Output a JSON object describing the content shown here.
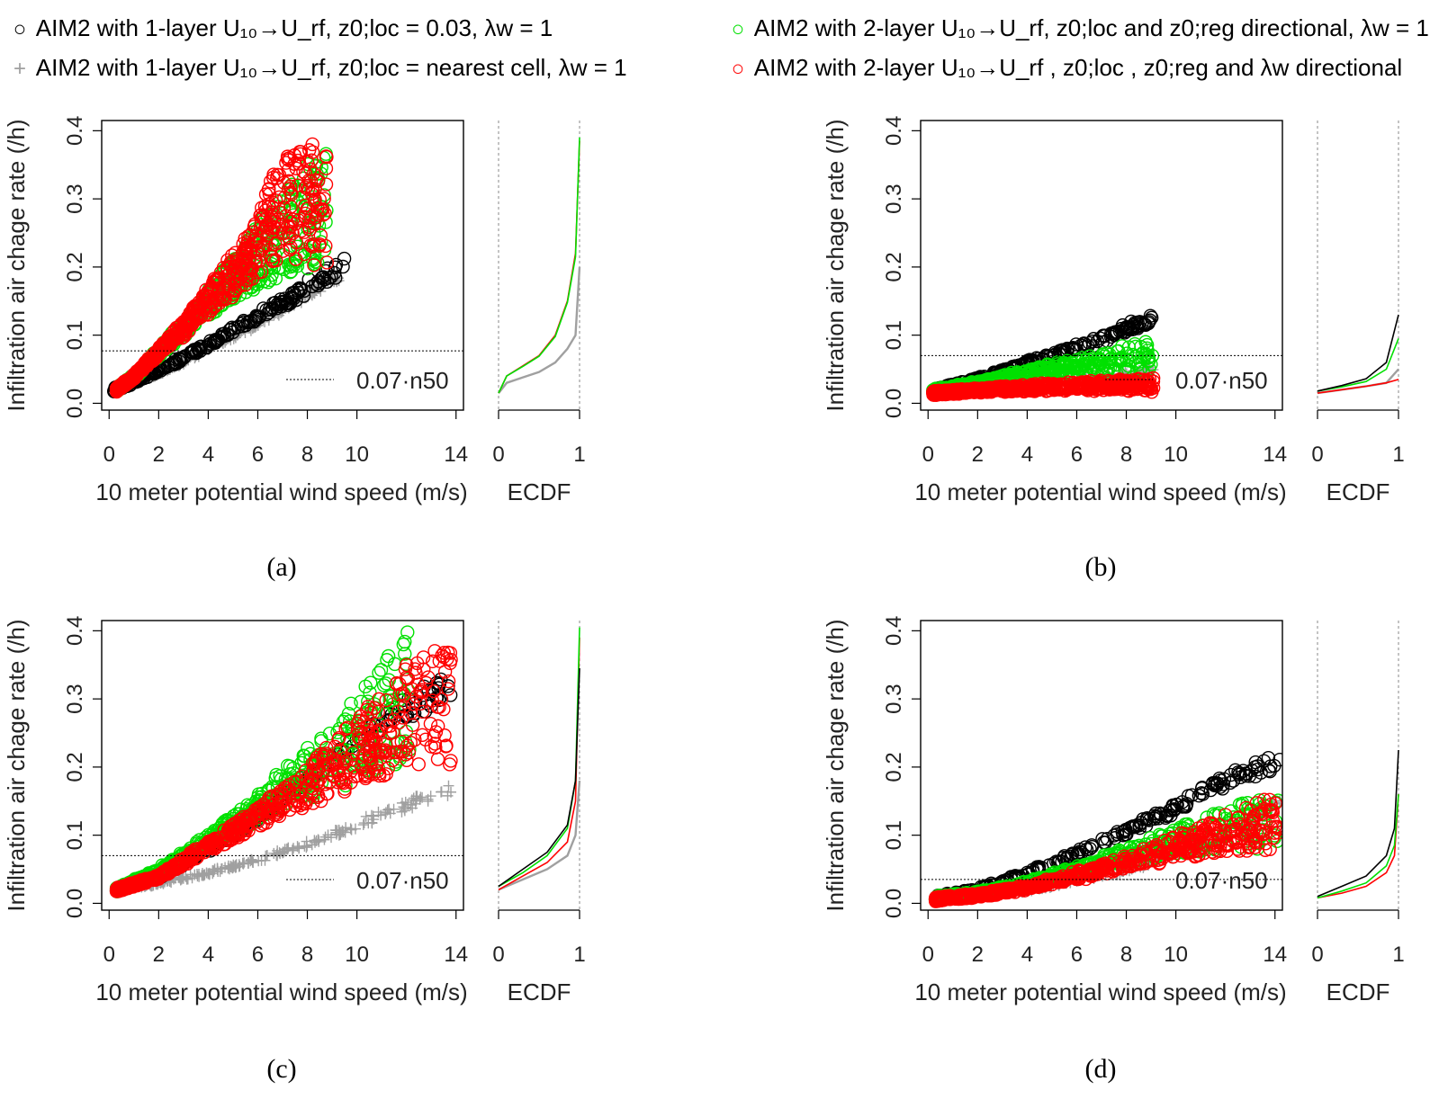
{
  "legend": {
    "items": [
      {
        "marker": "○",
        "color": "#000000",
        "name": "AIM2 with 1-layer U₁₀→U_rf, z0;loc = 0.03, λw = 1"
      },
      {
        "marker": "+",
        "color": "#a0a0a0",
        "name": "AIM2 with 1-layer U₁₀→U_rf, z0;loc = nearest cell, λw = 1"
      },
      {
        "marker": "○",
        "color": "#00e000",
        "name": "AIM2 with 2-layer U₁₀→U_rf, z0;loc and z0;reg directional, λw = 1"
      },
      {
        "marker": "○",
        "color": "#ff0000",
        "name": "AIM2 with 2-layer U₁₀→U_rf , z0;loc , z0;reg and λw directional"
      }
    ]
  },
  "colors": {
    "black": "#000000",
    "grey": "#a0a0a0",
    "green": "#00e000",
    "red": "#ff0000"
  },
  "chart_data": [
    {
      "panel": "(a)",
      "type": "scatter",
      "xlabel": "10 meter potential wind speed (m/s)",
      "ylabel": "Infiltration air chage rate (/h)",
      "xticks": [
        0,
        2,
        4,
        6,
        8,
        10,
        14
      ],
      "yticks": [
        0.0,
        0.1,
        0.2,
        0.3,
        0.4
      ],
      "xlim": [
        -0.3,
        14.3
      ],
      "ylim": [
        -0.01,
        0.415
      ],
      "reference_line": {
        "label": "0.07·n50",
        "y": 0.077
      },
      "series": [
        {
          "color": "grey",
          "marker": "plus",
          "x": [
            0.2,
            1,
            2,
            3,
            4,
            5,
            6,
            7,
            8,
            9.3
          ],
          "y": [
            0.02,
            0.03,
            0.045,
            0.062,
            0.082,
            0.102,
            0.122,
            0.145,
            0.17,
            0.2
          ]
        },
        {
          "color": "black",
          "marker": "circle",
          "x": [
            0.2,
            1,
            2,
            3,
            4,
            5,
            6,
            7,
            8,
            9.5
          ],
          "y": [
            0.02,
            0.032,
            0.05,
            0.068,
            0.088,
            0.11,
            0.132,
            0.155,
            0.18,
            0.215
          ]
        },
        {
          "color": "green",
          "marker": "circle",
          "x": [
            0.3,
            1,
            2,
            3,
            4,
            5,
            6,
            7,
            8,
            8.8
          ],
          "y": [
            0.02,
            0.04,
            0.08,
            0.12,
            0.165,
            0.21,
            0.26,
            0.31,
            0.35,
            0.39
          ]
        },
        {
          "color": "red",
          "marker": "circle",
          "x": [
            0.3,
            1,
            2,
            3,
            4,
            5,
            6,
            6.5,
            7.3,
            8.8
          ],
          "y": [
            0.02,
            0.04,
            0.08,
            0.12,
            0.17,
            0.22,
            0.27,
            0.33,
            0.37,
            0.385
          ]
        }
      ],
      "ecdf": {
        "xlim": [
          0,
          1
        ],
        "xticks": [
          0,
          1
        ],
        "xlabel": "ECDF",
        "curves": [
          {
            "color": "grey",
            "p": [
              0,
              0.1,
              0.3,
              0.5,
              0.7,
              0.85,
              0.95,
              1
            ],
            "y": [
              0.015,
              0.03,
              0.038,
              0.046,
              0.06,
              0.08,
              0.1,
              0.2
            ]
          },
          {
            "color": "red",
            "p": [
              0,
              0.1,
              0.3,
              0.5,
              0.7,
              0.85,
              0.95,
              1
            ],
            "y": [
              0.015,
              0.04,
              0.055,
              0.07,
              0.1,
              0.15,
              0.22,
              0.385
            ]
          },
          {
            "color": "green",
            "p": [
              0,
              0.1,
              0.3,
              0.5,
              0.7,
              0.85,
              0.95,
              1
            ],
            "y": [
              0.015,
              0.04,
              0.054,
              0.069,
              0.098,
              0.148,
              0.215,
              0.39
            ]
          }
        ]
      }
    },
    {
      "panel": "(b)",
      "type": "scatter",
      "xlabel": "10 meter potential wind speed (m/s)",
      "ylabel": "Infiltration air chage rate (/h)",
      "xticks": [
        0,
        2,
        4,
        6,
        8,
        10,
        14
      ],
      "yticks": [
        0.0,
        0.1,
        0.2,
        0.3,
        0.4
      ],
      "xlim": [
        -0.3,
        14.3
      ],
      "ylim": [
        -0.01,
        0.415
      ],
      "reference_line": {
        "label": "0.07·n50",
        "y": 0.07
      },
      "series": [
        {
          "color": "grey",
          "marker": "plus",
          "x": [
            0.2,
            2,
            4,
            6,
            8,
            9.1
          ],
          "y": [
            0.015,
            0.02,
            0.027,
            0.035,
            0.045,
            0.052
          ]
        },
        {
          "color": "black",
          "marker": "circle",
          "x": [
            0.2,
            2,
            4,
            6,
            8,
            9.1
          ],
          "y": [
            0.018,
            0.035,
            0.06,
            0.085,
            0.115,
            0.13
          ]
        },
        {
          "color": "green",
          "marker": "circle",
          "x": [
            0.2,
            2,
            4,
            6,
            8,
            9.1
          ],
          "y": [
            0.018,
            0.03,
            0.048,
            0.065,
            0.085,
            0.095
          ]
        },
        {
          "color": "red",
          "marker": "circle",
          "x": [
            0.2,
            2,
            4,
            6,
            8,
            9.1
          ],
          "y": [
            0.015,
            0.02,
            0.025,
            0.03,
            0.035,
            0.035
          ]
        }
      ],
      "ecdf": {
        "xlim": [
          0,
          1
        ],
        "xticks": [
          0,
          1
        ],
        "xlabel": "ECDF",
        "curves": [
          {
            "color": "grey",
            "p": [
              0,
              0.3,
              0.6,
              0.85,
              1
            ],
            "y": [
              0.015,
              0.02,
              0.025,
              0.03,
              0.05
            ]
          },
          {
            "color": "red",
            "p": [
              0,
              0.3,
              0.6,
              0.85,
              1
            ],
            "y": [
              0.015,
              0.02,
              0.025,
              0.03,
              0.035
            ]
          },
          {
            "color": "green",
            "p": [
              0,
              0.3,
              0.6,
              0.85,
              1
            ],
            "y": [
              0.018,
              0.024,
              0.032,
              0.05,
              0.095
            ]
          },
          {
            "color": "black",
            "p": [
              0,
              0.3,
              0.6,
              0.85,
              1
            ],
            "y": [
              0.018,
              0.026,
              0.036,
              0.06,
              0.13
            ]
          }
        ]
      }
    },
    {
      "panel": "(c)",
      "type": "scatter",
      "xlabel": "10 meter potential wind speed (m/s)",
      "ylabel": "Infiltration air chage rate (/h)",
      "xticks": [
        0,
        2,
        4,
        6,
        8,
        10,
        14
      ],
      "yticks": [
        0.0,
        0.1,
        0.2,
        0.3,
        0.4
      ],
      "xlim": [
        -0.3,
        14.3
      ],
      "ylim": [
        -0.01,
        0.415
      ],
      "reference_line": {
        "label": "0.07·n50",
        "y": 0.07
      },
      "series": [
        {
          "color": "grey",
          "marker": "plus",
          "x": [
            0.3,
            2,
            4,
            6,
            8,
            10,
            12,
            13.8
          ],
          "y": [
            0.02,
            0.03,
            0.045,
            0.065,
            0.09,
            0.12,
            0.15,
            0.18
          ]
        },
        {
          "color": "black",
          "marker": "circle",
          "x": [
            0.3,
            2,
            4,
            6,
            8,
            10,
            12,
            13.8
          ],
          "y": [
            0.02,
            0.04,
            0.08,
            0.13,
            0.19,
            0.25,
            0.3,
            0.345
          ]
        },
        {
          "color": "green",
          "marker": "circle",
          "x": [
            0.3,
            2,
            4,
            6,
            8,
            10,
            11,
            12.2
          ],
          "y": [
            0.02,
            0.05,
            0.1,
            0.16,
            0.23,
            0.3,
            0.36,
            0.405
          ]
        },
        {
          "color": "red",
          "marker": "circle",
          "x": [
            0.3,
            2,
            4,
            6,
            8,
            10,
            12,
            13.8
          ],
          "y": [
            0.02,
            0.04,
            0.09,
            0.14,
            0.2,
            0.27,
            0.35,
            0.39
          ]
        }
      ],
      "ecdf": {
        "xlim": [
          0,
          1
        ],
        "xticks": [
          0,
          1
        ],
        "xlabel": "ECDF",
        "curves": [
          {
            "color": "grey",
            "p": [
              0,
              0.3,
              0.6,
              0.85,
              0.95,
              1
            ],
            "y": [
              0.02,
              0.035,
              0.05,
              0.07,
              0.1,
              0.18
            ]
          },
          {
            "color": "red",
            "p": [
              0,
              0.3,
              0.6,
              0.85,
              0.95,
              1
            ],
            "y": [
              0.02,
              0.04,
              0.06,
              0.09,
              0.15,
              0.39
            ]
          },
          {
            "color": "green",
            "p": [
              0,
              0.3,
              0.6,
              0.85,
              0.95,
              1
            ],
            "y": [
              0.025,
              0.045,
              0.07,
              0.11,
              0.18,
              0.405
            ]
          },
          {
            "color": "black",
            "p": [
              0,
              0.3,
              0.6,
              0.85,
              0.95,
              1
            ],
            "y": [
              0.025,
              0.05,
              0.075,
              0.115,
              0.18,
              0.345
            ]
          }
        ]
      }
    },
    {
      "panel": "(d)",
      "type": "scatter",
      "xlabel": "10 meter potential wind speed (m/s)",
      "ylabel": "Infiltration air chage rate (/h)",
      "xticks": [
        0,
        2,
        4,
        6,
        8,
        10,
        14
      ],
      "yticks": [
        0.0,
        0.1,
        0.2,
        0.3,
        0.4
      ],
      "xlim": [
        -0.3,
        14.3
      ],
      "ylim": [
        -0.01,
        0.415
      ],
      "reference_line": {
        "label": "0.07·n50",
        "y": 0.035
      },
      "series": [
        {
          "color": "grey",
          "marker": "plus",
          "x": [
            0.3,
            2,
            4,
            6,
            8,
            10,
            12,
            14.2
          ],
          "y": [
            0.008,
            0.012,
            0.02,
            0.035,
            0.05,
            0.075,
            0.1,
            0.16
          ]
        },
        {
          "color": "black",
          "marker": "circle",
          "x": [
            0.3,
            2,
            4,
            6,
            8,
            10,
            12,
            14.2
          ],
          "y": [
            0.008,
            0.02,
            0.045,
            0.075,
            0.11,
            0.145,
            0.19,
            0.225
          ]
        },
        {
          "color": "green",
          "marker": "circle",
          "x": [
            0.3,
            2,
            4,
            6,
            8,
            10,
            12,
            14.2
          ],
          "y": [
            0.008,
            0.015,
            0.03,
            0.055,
            0.08,
            0.11,
            0.14,
            0.16
          ]
        },
        {
          "color": "red",
          "marker": "circle",
          "x": [
            0.3,
            2,
            4,
            6,
            8,
            10,
            12,
            14.2
          ],
          "y": [
            0.006,
            0.012,
            0.025,
            0.045,
            0.07,
            0.1,
            0.13,
            0.16
          ]
        }
      ],
      "ecdf": {
        "xlim": [
          0,
          1
        ],
        "xticks": [
          0,
          1
        ],
        "xlabel": "ECDF",
        "curves": [
          {
            "color": "red",
            "p": [
              0,
              0.3,
              0.6,
              0.85,
              0.95,
              1
            ],
            "y": [
              0.008,
              0.015,
              0.025,
              0.045,
              0.07,
              0.16
            ]
          },
          {
            "color": "green",
            "p": [
              0,
              0.3,
              0.6,
              0.85,
              0.95,
              1
            ],
            "y": [
              0.008,
              0.018,
              0.03,
              0.055,
              0.085,
              0.16
            ]
          },
          {
            "color": "black",
            "p": [
              0,
              0.3,
              0.6,
              0.85,
              0.95,
              1
            ],
            "y": [
              0.01,
              0.025,
              0.04,
              0.07,
              0.11,
              0.225
            ]
          }
        ]
      }
    }
  ]
}
